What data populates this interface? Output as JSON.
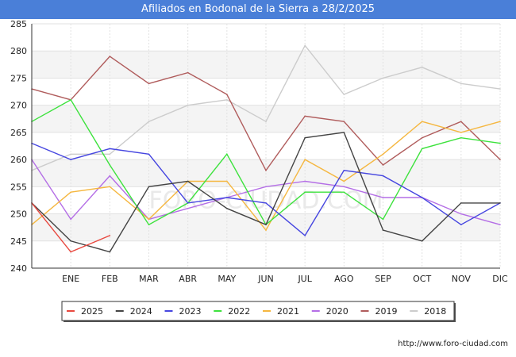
{
  "title": "Afiliados en Bodonal de la Sierra a 28/2/2025",
  "footer_url": "http://www.foro-ciudad.com",
  "watermark": "FORO-CIUDAD.COM",
  "chart_data": {
    "type": "line",
    "title": "Afiliados en Bodonal de la Sierra a 28/2/2025",
    "xlabel": "",
    "ylabel": "",
    "categories": [
      "",
      "ENE",
      "FEB",
      "MAR",
      "ABR",
      "MAY",
      "JUN",
      "JUL",
      "AGO",
      "SEP",
      "OCT",
      "NOV",
      "DIC"
    ],
    "ylim": [
      240,
      285
    ],
    "yticks": [
      240,
      245,
      250,
      255,
      260,
      265,
      270,
      275,
      280,
      285
    ],
    "grid": "horizontal",
    "legend_position": "bottom",
    "series": [
      {
        "name": "2025",
        "color": "#e8483f",
        "values": [
          252,
          243,
          246,
          null,
          null,
          null,
          null,
          null,
          null,
          null,
          null,
          null,
          null
        ]
      },
      {
        "name": "2024",
        "color": "#444444",
        "values": [
          252,
          245,
          243,
          255,
          256,
          251,
          248,
          264,
          265,
          247,
          245,
          252,
          252
        ]
      },
      {
        "name": "2023",
        "color": "#4646e0",
        "values": [
          263,
          260,
          262,
          261,
          252,
          253,
          252,
          246,
          258,
          257,
          253,
          248,
          252
        ]
      },
      {
        "name": "2022",
        "color": "#3de23d",
        "values": [
          267,
          271,
          259,
          248,
          252,
          261,
          248,
          254,
          254,
          249,
          262,
          264,
          263
        ]
      },
      {
        "name": "2021",
        "color": "#f5b740",
        "values": [
          248,
          254,
          255,
          249,
          256,
          256,
          247,
          260,
          256,
          261,
          267,
          265,
          267
        ]
      },
      {
        "name": "2020",
        "color": "#b46ee6",
        "values": [
          260,
          249,
          257,
          249,
          251,
          253,
          255,
          256,
          255,
          253,
          253,
          250,
          248
        ]
      },
      {
        "name": "2019",
        "color": "#b05c5c",
        "values": [
          273,
          271,
          279,
          274,
          276,
          272,
          258,
          268,
          267,
          259,
          264,
          267,
          260
        ]
      },
      {
        "name": "2018",
        "color": "#cccccc",
        "values": [
          258,
          261,
          261,
          267,
          270,
          271,
          267,
          281,
          272,
          275,
          277,
          274,
          273
        ]
      }
    ]
  }
}
